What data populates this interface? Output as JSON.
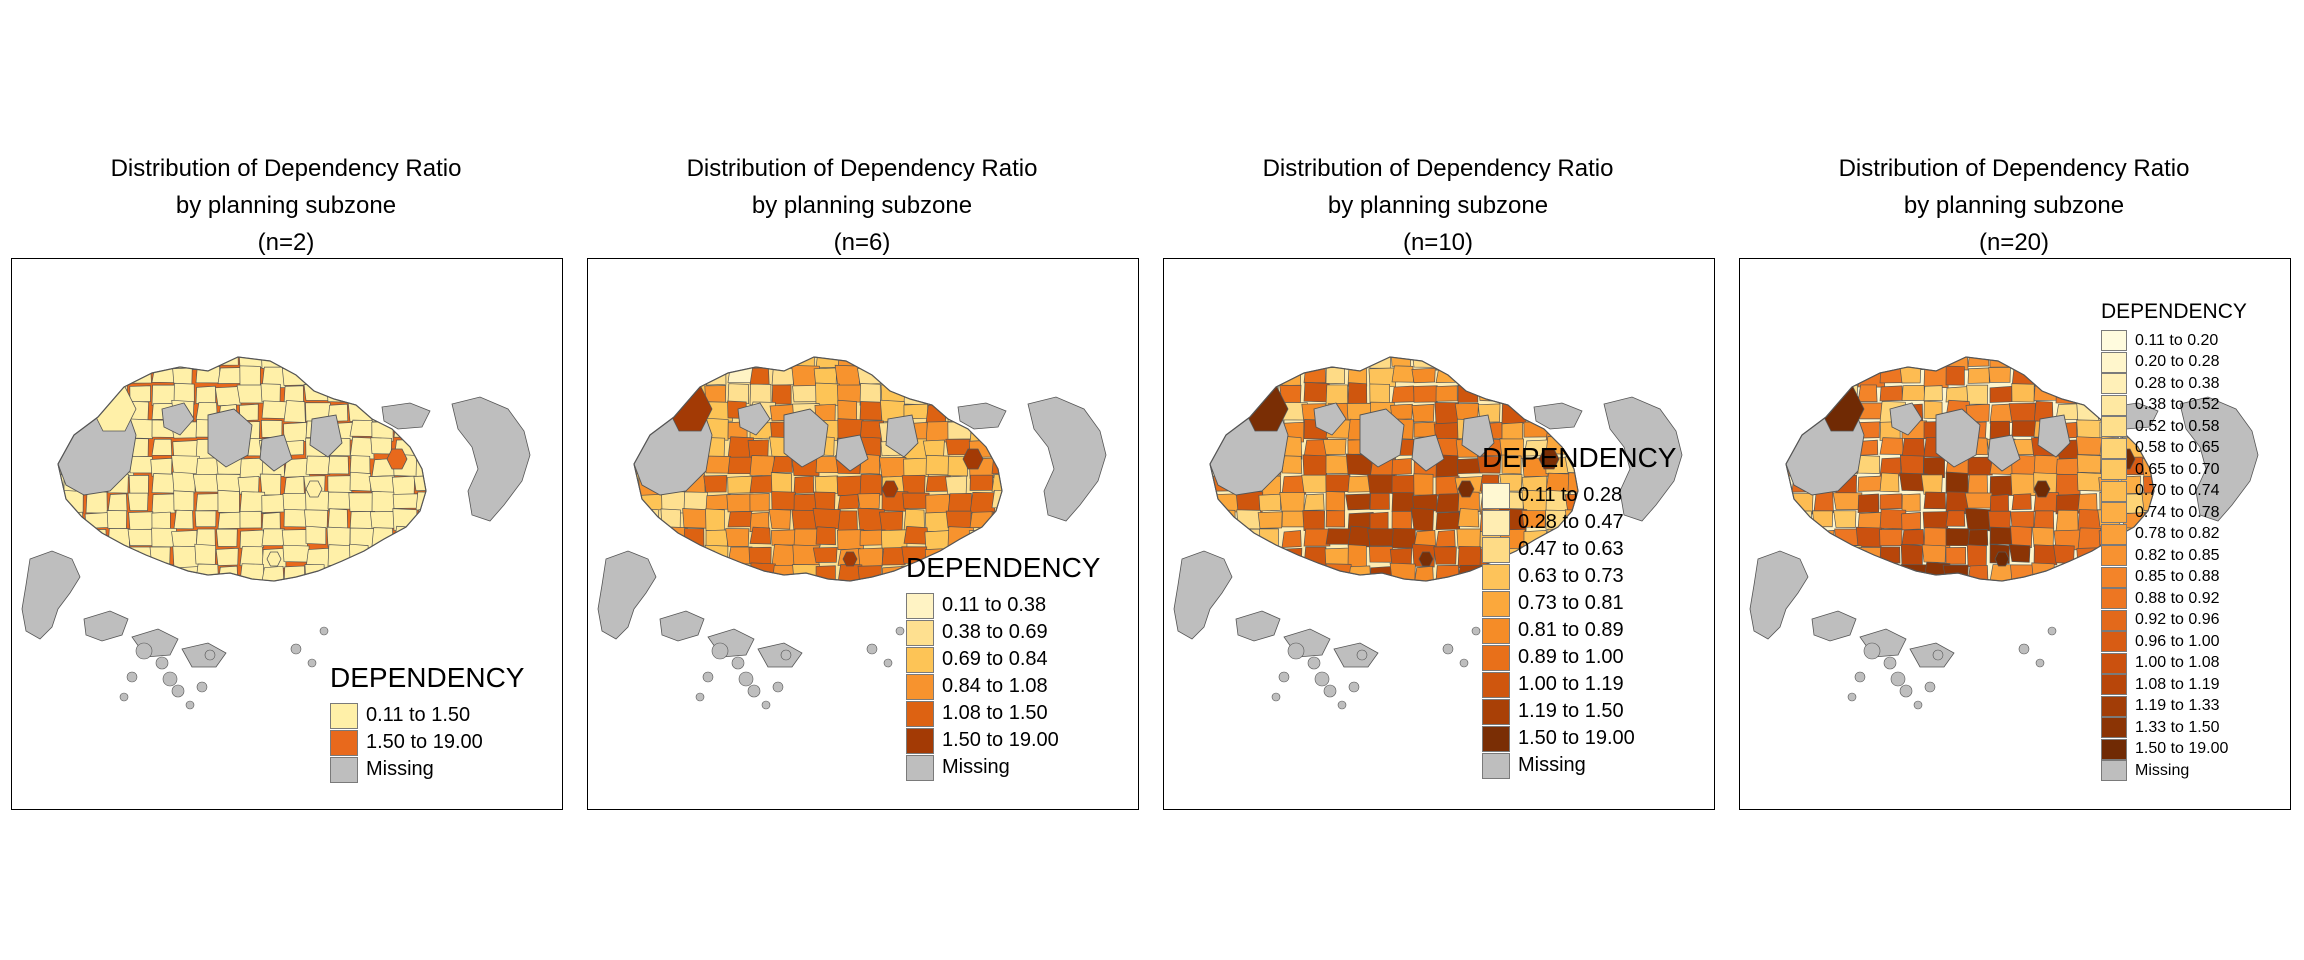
{
  "maps": [
    {
      "title_line1": "Distribution of Dependency Ratio",
      "title_line2": "by planning subzone",
      "title_line3": "(n=2)",
      "legend_title": "DEPENDENCY",
      "classes": [
        {
          "label": "0.11 to 1.50",
          "color": "#FFF0A8"
        },
        {
          "label": "1.50 to 19.00",
          "color": "#E8691C"
        }
      ],
      "missing_label": "Missing"
    },
    {
      "title_line1": "Distribution of Dependency Ratio",
      "title_line2": "by planning subzone",
      "title_line3": "(n=6)",
      "legend_title": "DEPENDENCY",
      "classes": [
        {
          "label": "0.11 to 0.38",
          "color": "#FFF3C4"
        },
        {
          "label": "0.38 to 0.69",
          "color": "#FEE090"
        },
        {
          "label": "0.69 to 0.84",
          "color": "#FDC456"
        },
        {
          "label": "0.84 to 1.08",
          "color": "#F7932E"
        },
        {
          "label": "1.08 to 1.50",
          "color": "#DD6212"
        },
        {
          "label": "1.50 to 19.00",
          "color": "#A33A05"
        }
      ],
      "missing_label": "Missing"
    },
    {
      "title_line1": "Distribution of Dependency Ratio",
      "title_line2": "by planning subzone",
      "title_line3": "(n=10)",
      "legend_title": "DEPENDENCY",
      "classes": [
        {
          "label": "0.11 to 0.28",
          "color": "#FFF8D2"
        },
        {
          "label": "0.28 to 0.47",
          "color": "#FFEDB2"
        },
        {
          "label": "0.47 to 0.63",
          "color": "#FEDB86"
        },
        {
          "label": "0.63 to 0.73",
          "color": "#FDC35A"
        },
        {
          "label": "0.73 to 0.81",
          "color": "#FBA83C"
        },
        {
          "label": "0.81 to 0.89",
          "color": "#F58C27"
        },
        {
          "label": "0.89 to 1.00",
          "color": "#E8701A"
        },
        {
          "label": "1.00 to 1.19",
          "color": "#CF560E"
        },
        {
          "label": "1.19 to 1.50",
          "color": "#A94006"
        },
        {
          "label": "1.50 to 19.00",
          "color": "#7A2E05"
        }
      ],
      "missing_label": "Missing"
    },
    {
      "title_line1": "Distribution of Dependency Ratio",
      "title_line2": "by planning subzone",
      "title_line3": "(n=20)",
      "legend_title": "DEPENDENCY",
      "classes": [
        {
          "label": "0.11 to 0.20",
          "color": "#FFFBDE"
        },
        {
          "label": "0.20 to 0.28",
          "color": "#FFF6CC"
        },
        {
          "label": "0.28 to 0.38",
          "color": "#FFF0B8"
        },
        {
          "label": "0.38 to 0.52",
          "color": "#FEE8A2"
        },
        {
          "label": "0.52 to 0.58",
          "color": "#FEDF8C"
        },
        {
          "label": "0.58 to 0.65",
          "color": "#FED476"
        },
        {
          "label": "0.65 to 0.70",
          "color": "#FDC862"
        },
        {
          "label": "0.70 to 0.74",
          "color": "#FDBC52"
        },
        {
          "label": "0.74 to 0.78",
          "color": "#FCAE45"
        },
        {
          "label": "0.78 to 0.82",
          "color": "#FAA03A"
        },
        {
          "label": "0.82 to 0.85",
          "color": "#F79231"
        },
        {
          "label": "0.85 to 0.88",
          "color": "#F38429"
        },
        {
          "label": "0.88 to 0.92",
          "color": "#ED7622"
        },
        {
          "label": "0.92 to 0.96",
          "color": "#E3691B"
        },
        {
          "label": "0.96 to 1.00",
          "color": "#D85C14"
        },
        {
          "label": "1.00 to 1.08",
          "color": "#CB510F"
        },
        {
          "label": "1.08 to 1.19",
          "color": "#B8460A"
        },
        {
          "label": "1.19 to 1.33",
          "color": "#A23D07"
        },
        {
          "label": "1.33 to 1.50",
          "color": "#8B3405"
        },
        {
          "label": "1.50 to 19.00",
          "color": "#702A04"
        }
      ],
      "missing_label": "Missing"
    }
  ],
  "missing_color": "#BEBEBE",
  "border_color": "#555555"
}
